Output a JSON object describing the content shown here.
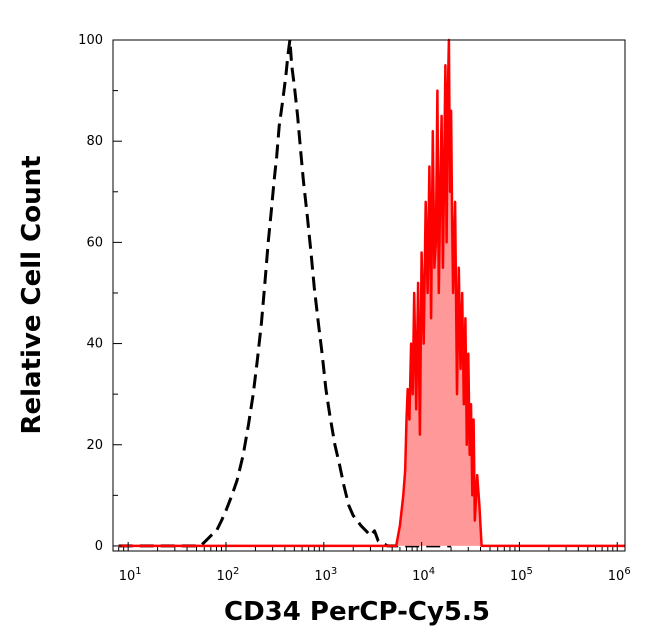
{
  "chart_data": {
    "type": "area",
    "xlabel": "CD34 PerCP-Cy5.5",
    "ylabel": "Relative Cell Count",
    "x_scale": "log",
    "xlim": [
      7,
      1200000
    ],
    "ylim": [
      -1,
      100
    ],
    "x_ticks": [
      {
        "value": 10,
        "base": "10",
        "exp": "1"
      },
      {
        "value": 100,
        "base": "10",
        "exp": "2"
      },
      {
        "value": 1000,
        "base": "10",
        "exp": "3"
      },
      {
        "value": 10000,
        "base": "10",
        "exp": "4"
      },
      {
        "value": 100000,
        "base": "10",
        "exp": "5"
      },
      {
        "value": 1000000,
        "base": "10",
        "exp": "6"
      }
    ],
    "y_ticks": [
      "0",
      "20",
      "40",
      "60",
      "80",
      "100"
    ],
    "grid": false,
    "series": [
      {
        "style": "dashed-outline",
        "color": "#000000",
        "x": [
          8,
          20,
          40,
          55,
          62,
          70,
          80,
          90,
          100,
          115,
          130,
          150,
          170,
          190,
          210,
          230,
          250,
          270,
          290,
          310,
          330,
          350,
          380,
          410,
          430,
          450,
          470,
          500,
          540,
          580,
          620,
          680,
          740,
          800,
          880,
          960,
          1050,
          1150,
          1300,
          1450,
          1600,
          1800,
          2000,
          2200,
          2400,
          2700,
          3000,
          3300,
          3600,
          4500,
          8000,
          20000
        ],
        "y": [
          0,
          0,
          0,
          0,
          1,
          2,
          3,
          5,
          7,
          10,
          13,
          18,
          24,
          30,
          37,
          44,
          52,
          60,
          66,
          72,
          77,
          83,
          88,
          93,
          97,
          100,
          95,
          91,
          85,
          78,
          72,
          65,
          58,
          51,
          44,
          38,
          31,
          26,
          20,
          16,
          12,
          8,
          6,
          5,
          4,
          3,
          2,
          3,
          1,
          0,
          0,
          0
        ]
      },
      {
        "style": "filled",
        "color": "#ff0000",
        "fill": "#ff9999",
        "x": [
          8,
          5500,
          6000,
          6500,
          6800,
          7000,
          7200,
          7500,
          7800,
          8100,
          8400,
          8800,
          9200,
          9600,
          10000,
          10500,
          11000,
          11500,
          12000,
          12500,
          13000,
          13500,
          14000,
          14500,
          15000,
          15500,
          16000,
          16500,
          17000,
          17500,
          18000,
          18500,
          19000,
          19500,
          20000,
          20500,
          21000,
          22000,
          23000,
          24000,
          25000,
          26000,
          27000,
          28000,
          29000,
          30000,
          31000,
          32000,
          33000,
          34000,
          35000,
          37000,
          39000,
          41000,
          1200000
        ],
        "y": [
          0,
          0,
          4,
          10,
          15,
          25,
          31,
          25,
          40,
          30,
          50,
          27,
          52,
          22,
          58,
          40,
          68,
          50,
          75,
          45,
          82,
          55,
          60,
          90,
          50,
          70,
          85,
          55,
          75,
          95,
          60,
          88,
          100,
          70,
          86,
          65,
          50,
          68,
          30,
          55,
          35,
          50,
          28,
          45,
          20,
          38,
          18,
          28,
          10,
          25,
          5,
          14,
          8,
          0,
          0
        ]
      }
    ]
  }
}
